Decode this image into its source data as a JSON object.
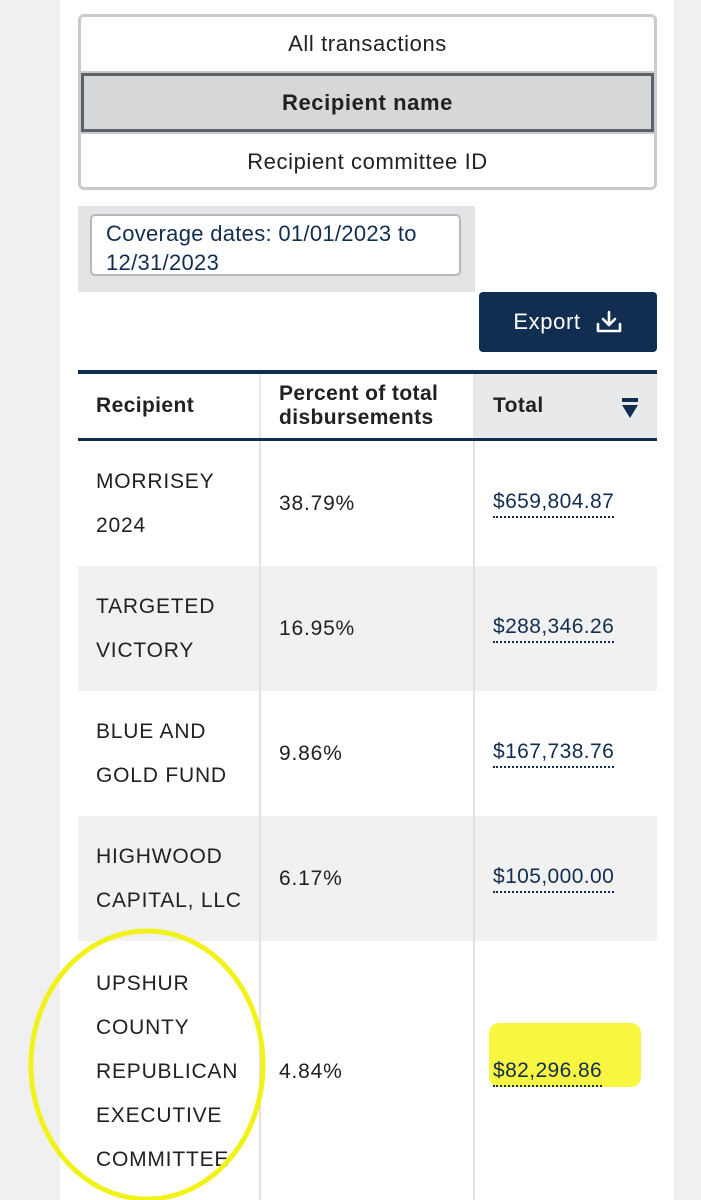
{
  "tabs": [
    {
      "label": "All transactions"
    },
    {
      "label": "Recipient name"
    },
    {
      "label": "Recipient committee ID"
    }
  ],
  "coverage": {
    "text": "Coverage dates: 01/01/2023 to 12/31/2023"
  },
  "export": {
    "label": "Export",
    "icon": "download-icon"
  },
  "table": {
    "headers": [
      "Recipient",
      "Percent of total disbursements",
      "Total"
    ],
    "sort_icon": "sort-descending-icon",
    "rows": [
      {
        "recipient": "MORRISEY 2024",
        "percent": "38.79%",
        "total": "$659,804.87"
      },
      {
        "recipient": "TARGETED VICTORY",
        "percent": "16.95%",
        "total": "$288,346.26"
      },
      {
        "recipient": "BLUE AND GOLD FUND",
        "percent": "9.86%",
        "total": "$167,738.76"
      },
      {
        "recipient": "HIGHWOOD CAPITAL, LLC",
        "percent": "6.17%",
        "total": "$105,000.00"
      },
      {
        "recipient": "UPSHUR COUNTY REPUBLICAN EXECUTIVE COMMITTEE",
        "percent": "4.84%",
        "total": "$82,296.86"
      }
    ]
  },
  "colors": {
    "primary_navy": "#112e51",
    "highlight_yellow": "#f7f52b",
    "annotation_yellow": "#f2f21b"
  }
}
